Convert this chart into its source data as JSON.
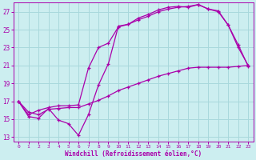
{
  "xlabel": "Windchill (Refroidissement éolien,°C)",
  "bg_color": "#cceef0",
  "grid_color": "#a8d8dc",
  "line_color": "#aa00aa",
  "xlim": [
    -0.5,
    23.5
  ],
  "ylim": [
    12.5,
    28.0
  ],
  "yticks": [
    13,
    15,
    17,
    19,
    21,
    23,
    25,
    27
  ],
  "xticks": [
    0,
    1,
    2,
    3,
    4,
    5,
    6,
    7,
    8,
    9,
    10,
    11,
    12,
    13,
    14,
    15,
    16,
    17,
    18,
    19,
    20,
    21,
    22,
    23
  ],
  "line1_x": [
    0,
    1,
    2,
    3,
    4,
    5,
    6,
    7,
    8,
    9,
    10,
    11,
    12,
    13,
    14,
    15,
    16,
    17,
    18,
    19,
    20,
    21,
    22,
    23
  ],
  "line1_y": [
    17.0,
    15.3,
    15.1,
    16.2,
    14.9,
    14.5,
    13.2,
    15.5,
    18.8,
    21.2,
    25.4,
    25.6,
    26.3,
    26.7,
    27.2,
    27.5,
    27.6,
    27.5,
    27.8,
    27.3,
    27.1,
    25.5,
    23.0,
    21.0
  ],
  "line2_x": [
    0,
    1,
    2,
    3,
    4,
    5,
    6,
    7,
    8,
    9,
    10,
    11,
    12,
    13,
    14,
    15,
    16,
    17,
    18,
    19,
    20,
    21,
    22,
    23
  ],
  "line2_y": [
    17.0,
    15.8,
    15.5,
    16.1,
    16.2,
    16.3,
    16.3,
    16.7,
    17.1,
    17.6,
    18.2,
    18.6,
    19.0,
    19.4,
    19.8,
    20.1,
    20.4,
    20.7,
    20.8,
    20.8,
    20.8,
    20.8,
    20.9,
    21.0
  ],
  "line3_x": [
    0,
    1,
    2,
    3,
    4,
    5,
    6,
    7,
    8,
    9,
    10,
    11,
    12,
    13,
    14,
    15,
    16,
    17,
    18,
    19,
    20,
    21,
    22,
    23
  ],
  "line3_y": [
    17.0,
    15.5,
    16.0,
    16.3,
    16.5,
    16.5,
    16.6,
    20.7,
    23.0,
    23.5,
    25.3,
    25.6,
    26.1,
    26.5,
    27.0,
    27.3,
    27.5,
    27.6,
    27.8,
    27.3,
    27.0,
    25.5,
    23.3,
    20.9
  ]
}
